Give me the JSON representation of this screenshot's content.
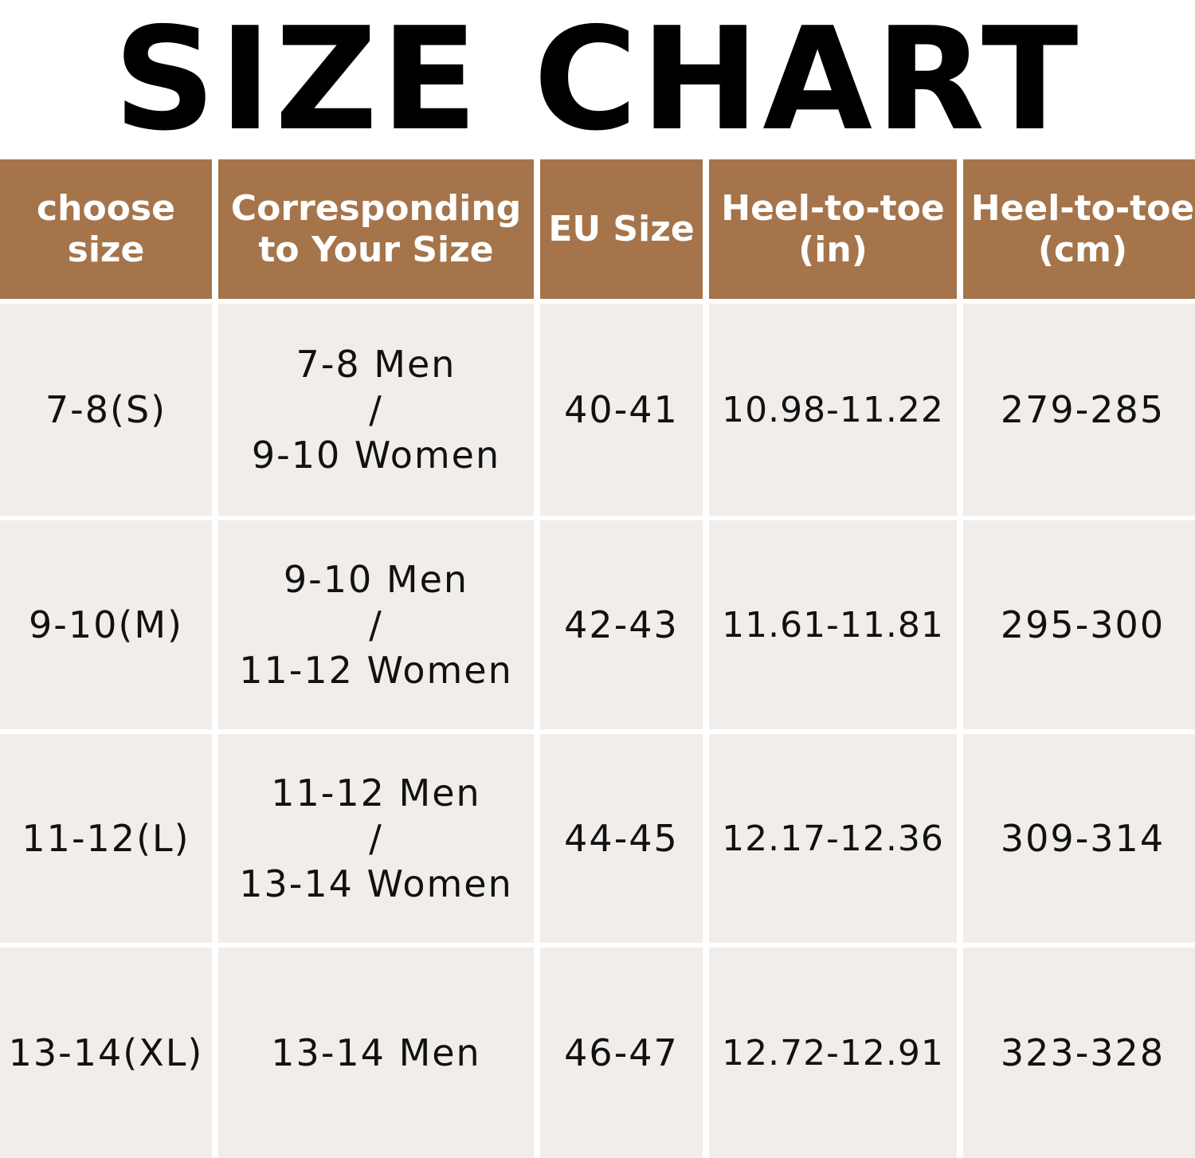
{
  "title": "SIZE CHART",
  "colors": {
    "header_bg": "#a5744b",
    "header_text": "#ffffff",
    "cell_bg": "#f0edea",
    "cell_text": "#111111",
    "title_text": "#000000"
  },
  "chart_data": {
    "type": "table",
    "title": "SIZE CHART",
    "columns": [
      "choose\nsize",
      "Corresponding\nto Your Size",
      "EU Size",
      "Heel-to-toe\n(in)",
      "Heel-to-toe\n(cm)"
    ],
    "rows": [
      [
        "7-8(S)",
        "7-8 Men\n/\n9-10 Women",
        "40-41",
        "10.98-11.22",
        "279-285"
      ],
      [
        "9-10(M)",
        "9-10 Men\n/\n11-12 Women",
        "42-43",
        "11.61-11.81",
        "295-300"
      ],
      [
        "11-12(L)",
        "11-12 Men\n/\n13-14 Women",
        "44-45",
        "12.17-12.36",
        "309-314"
      ],
      [
        "13-14(XL)",
        "13-14 Men",
        "46-47",
        "12.72-12.91",
        "323-328"
      ]
    ]
  }
}
